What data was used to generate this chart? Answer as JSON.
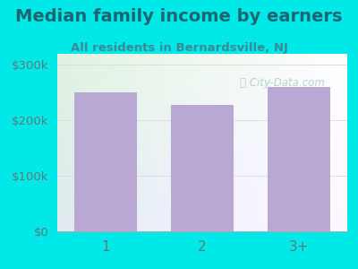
{
  "categories": [
    "1",
    "2",
    "3+"
  ],
  "values": [
    250000,
    228000,
    261000
  ],
  "bar_color": "#b9a8d4",
  "title": "Median family income by earners",
  "subtitle": "All residents in Bernardsville, NJ",
  "title_color": "#1a6670",
  "subtitle_color": "#3a8a96",
  "bg_color": "#00e8e8",
  "yticks": [
    0,
    100000,
    200000,
    300000
  ],
  "ytick_labels": [
    "$0",
    "$100k",
    "$200k",
    "$300k"
  ],
  "ylim": [
    0,
    320000
  ],
  "watermark": "City-Data.com",
  "tick_color": "#5a7a7a",
  "grid_color": "#dddddd",
  "title_fontsize": 14,
  "subtitle_fontsize": 9.5
}
